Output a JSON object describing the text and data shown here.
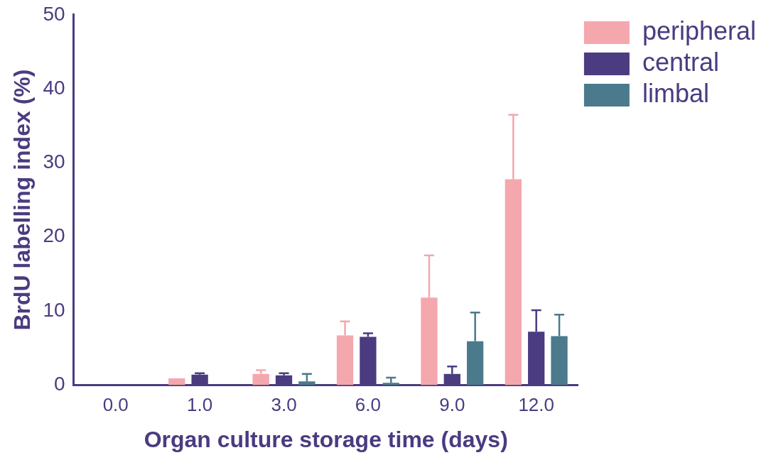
{
  "chart_data": {
    "type": "bar",
    "xlabel": "Organ culture storage time (days)",
    "ylabel": "BrdU labelling index (%)",
    "categories": [
      "0.0",
      "1.0",
      "3.0",
      "6.0",
      "9.0",
      "12.0"
    ],
    "series": [
      {
        "name": "peripheral",
        "color": "#f4a7ad",
        "values": [
          0,
          0.9,
          1.5,
          6.7,
          11.8,
          27.8
        ],
        "errors": [
          null,
          null,
          0.5,
          1.9,
          5.7,
          8.7
        ]
      },
      {
        "name": "central",
        "color": "#4b3b80",
        "values": [
          0.1,
          1.4,
          1.3,
          6.5,
          1.5,
          7.2
        ],
        "errors": [
          null,
          0.2,
          0.3,
          0.5,
          1.0,
          2.9
        ]
      },
      {
        "name": "limbal",
        "color": "#4a7a8c",
        "values": [
          0,
          0,
          0.5,
          0.3,
          5.9,
          6.6
        ],
        "errors": [
          null,
          null,
          1.0,
          0.7,
          3.9,
          2.9
        ]
      }
    ],
    "ylim": [
      0,
      50
    ],
    "yticks": [
      0,
      10,
      20,
      30,
      40,
      50
    ],
    "grid": false,
    "legend": "top right"
  }
}
